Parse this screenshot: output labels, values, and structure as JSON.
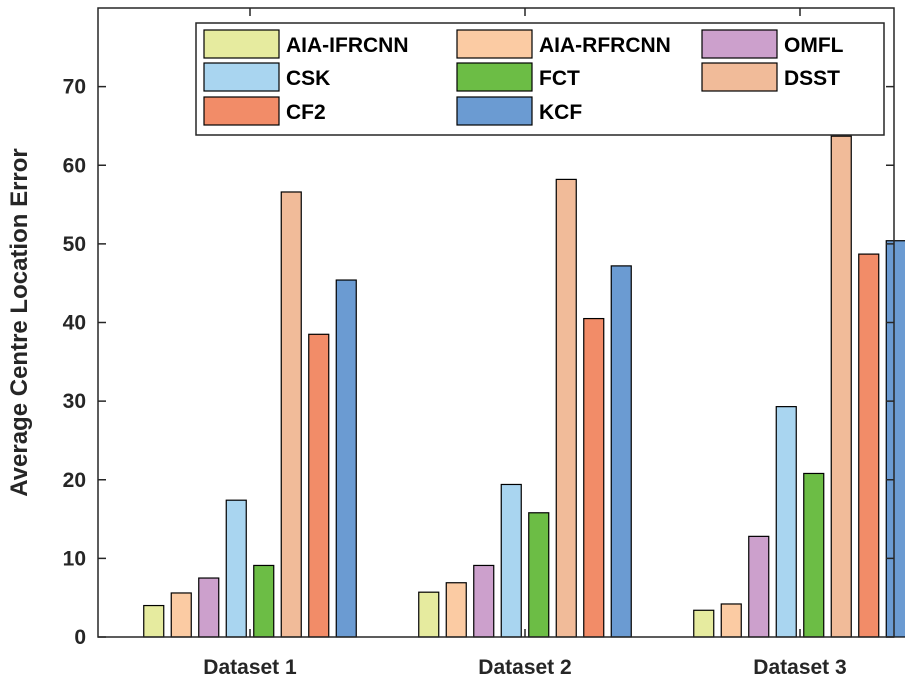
{
  "chart_data": {
    "type": "bar",
    "title": "",
    "xlabel": "",
    "ylabel": "Average Centre Location Error",
    "ylim": [
      0,
      80
    ],
    "yticks": [
      0,
      10,
      20,
      30,
      40,
      50,
      60,
      70
    ],
    "grid": false,
    "legend_position": "top-right",
    "categories": [
      "Dataset 1",
      "Dataset 2",
      "Dataset 3"
    ],
    "series": [
      {
        "name": "AIA-IFRCNN",
        "color": "#e6eb9f",
        "values": [
          4.0,
          5.7,
          3.4
        ]
      },
      {
        "name": "AIA-RFRCNN",
        "color": "#fbcba3",
        "values": [
          5.6,
          6.9,
          4.2
        ]
      },
      {
        "name": "OMFL",
        "color": "#cca0cc",
        "values": [
          7.5,
          9.1,
          12.8
        ]
      },
      {
        "name": "CSK",
        "color": "#a9d5f0",
        "values": [
          17.4,
          19.4,
          29.3
        ]
      },
      {
        "name": "FCT",
        "color": "#6cbd45",
        "values": [
          9.1,
          15.8,
          20.8
        ]
      },
      {
        "name": "DSST",
        "color": "#f1bb99",
        "values": [
          56.6,
          58.2,
          63.7
        ]
      },
      {
        "name": "CF2",
        "color": "#f28c68",
        "values": [
          38.5,
          40.5,
          48.7
        ]
      },
      {
        "name": "KCF",
        "color": "#6b9bd2",
        "values": [
          45.4,
          47.2,
          50.4
        ]
      }
    ]
  }
}
